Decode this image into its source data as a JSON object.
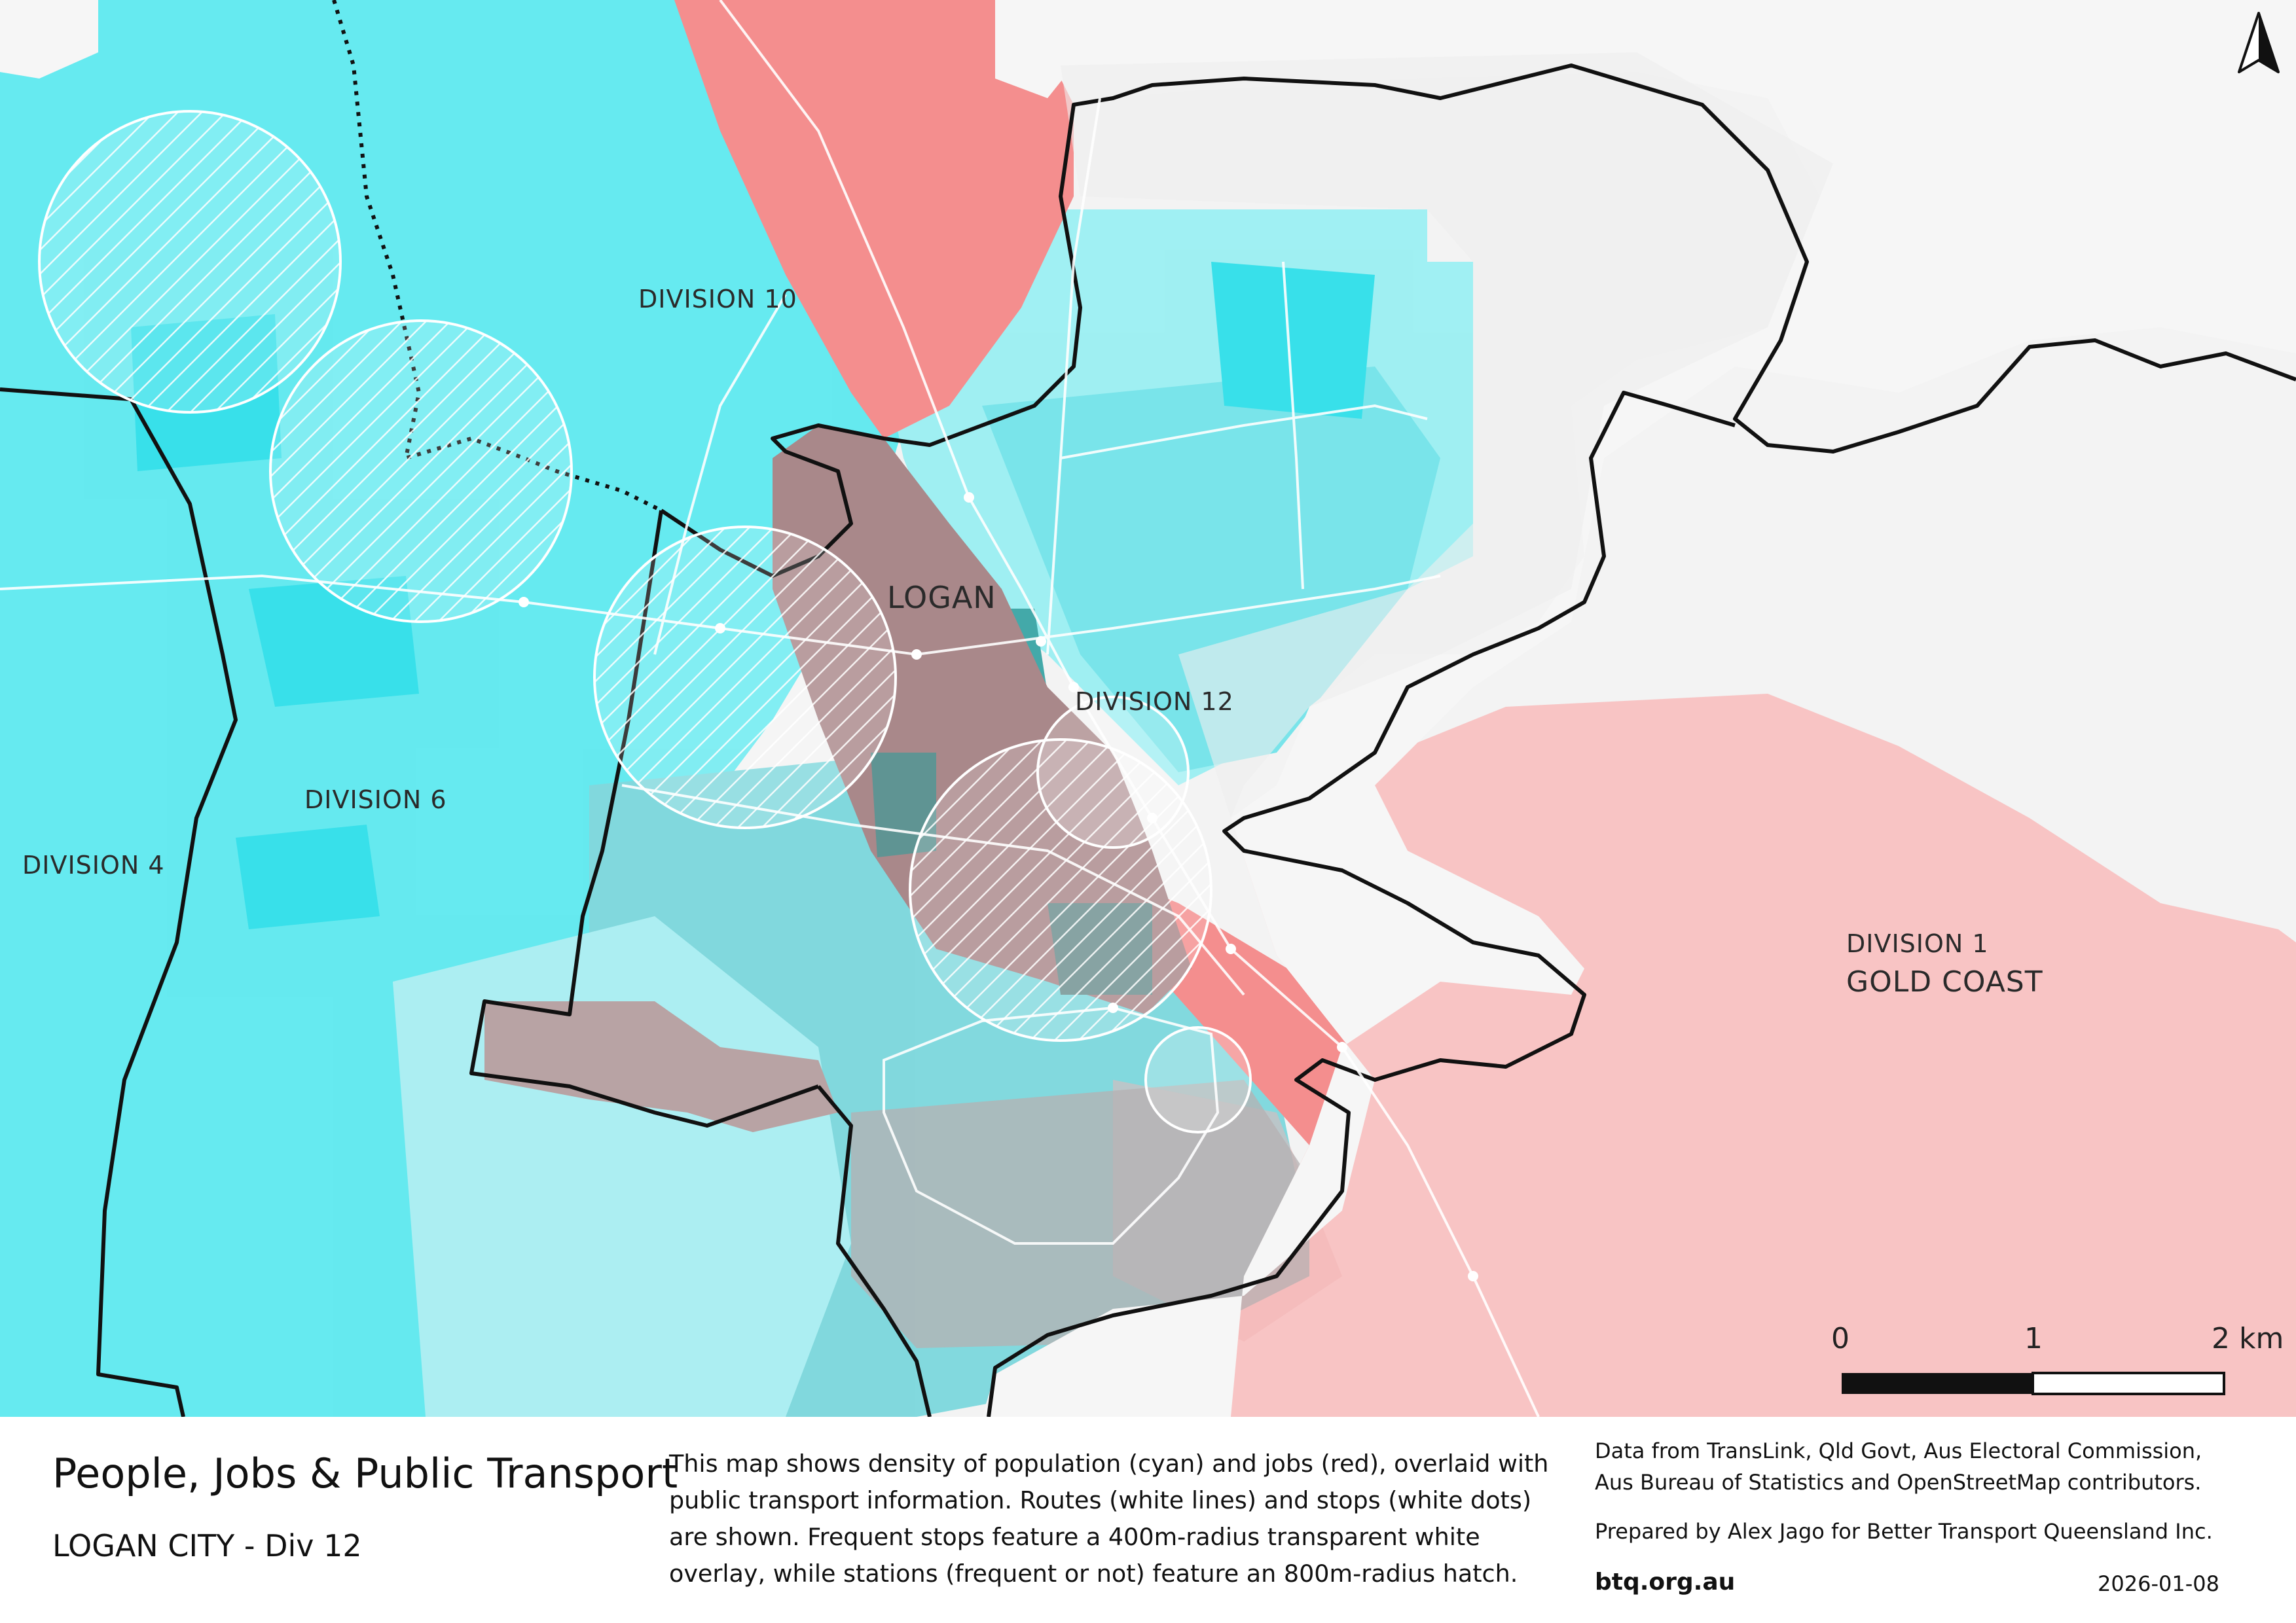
{
  "map": {
    "labels": {
      "division_10": "DIVISION 10",
      "division_12": "DIVISION 12",
      "division_6": "DIVISION 6",
      "division_4": "DIVISION 4",
      "division_1": "DIVISION 1",
      "gold_coast": "GOLD COAST",
      "logan": "LOGAN"
    },
    "scale_bar": {
      "tick_0": "0",
      "tick_1": "1",
      "tick_2": "2 km"
    },
    "colors": {
      "population": "#3fe6ee",
      "jobs": "#f48e8e",
      "jobs_light": "#f8c4c4",
      "overlap": "#a9888a",
      "boundary": "#111111",
      "background": "#f3f3f3"
    },
    "icons": {
      "north_arrow": "north-arrow-icon"
    }
  },
  "footer": {
    "title": "People, Jobs & Public Transport",
    "subtitle": "LOGAN CITY - Div 12",
    "description_lines": [
      "This map shows density of population (cyan) and jobs (red), overlaid with",
      "public transport information. Routes (white lines) and stops (white dots)",
      "are shown. Frequent stops feature a 400m-radius transparent white",
      "overlay, while stations (frequent or not) feature an 800m-radius hatch."
    ],
    "credits_lines": [
      "Data from TransLink,  Qld Govt,  Aus Electoral Commission,",
      "Aus Bureau of Statistics and OpenStreetMap contributors."
    ],
    "prepared_by": "Prepared by Alex Jago for Better Transport Queensland Inc.",
    "url": "btq.org.au",
    "date": "2026-01-08"
  }
}
